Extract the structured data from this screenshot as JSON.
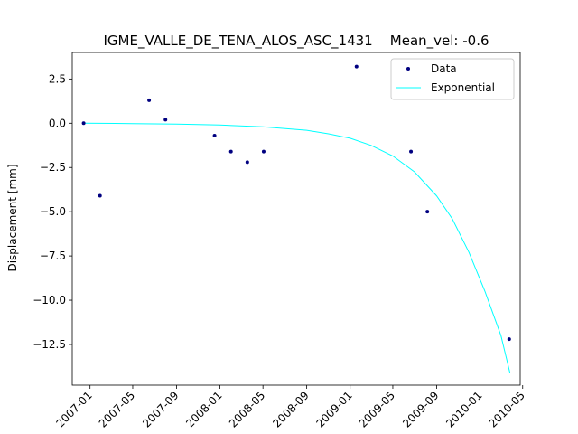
{
  "chart_data": {
    "type": "scatter",
    "title": "IGME_VALLE_DE_TENA_ALOS_ASC_1431    Mean_vel: -0.6",
    "xlabel": "",
    "ylabel": "Displacement [mm]",
    "xlim": [
      "2006-11-12",
      "2010-04-24"
    ],
    "ylim": [
      -14.8,
      4.0
    ],
    "x_ticks": [
      "2007-01",
      "2007-05",
      "2007-09",
      "2008-01",
      "2008-05",
      "2008-09",
      "2009-01",
      "2009-05",
      "2009-09",
      "2010-01",
      "2010-05"
    ],
    "y_ticks": [
      2.5,
      0.0,
      -2.5,
      -5.0,
      -7.5,
      -10.0,
      -12.5
    ],
    "y_tick_labels": [
      "2.5",
      "0.0",
      "−2.5",
      "−5.0",
      "−7.5",
      "−10.0",
      "−12.5"
    ],
    "grid": false,
    "legend_position": "top-right",
    "series": [
      {
        "name": "Data",
        "type": "scatter",
        "color": "#000080",
        "points": [
          {
            "x": "2006-12-14",
            "y": 0.0
          },
          {
            "x": "2007-01-29",
            "y": -4.1
          },
          {
            "x": "2007-06-16",
            "y": 1.3
          },
          {
            "x": "2007-08-01",
            "y": 0.2
          },
          {
            "x": "2007-12-17",
            "y": -0.7
          },
          {
            "x": "2008-02-01",
            "y": -1.6
          },
          {
            "x": "2008-03-18",
            "y": -2.2
          },
          {
            "x": "2008-05-03",
            "y": -1.6
          },
          {
            "x": "2009-01-19",
            "y": 3.2
          },
          {
            "x": "2009-06-21",
            "y": -1.6
          },
          {
            "x": "2009-08-06",
            "y": -5.0
          },
          {
            "x": "2010-03-24",
            "y": -12.2
          }
        ]
      },
      {
        "name": "Exponential",
        "type": "line",
        "color": "#00ffff",
        "points": [
          {
            "x": "2006-12-14",
            "y": 0.0
          },
          {
            "x": "2007-05-01",
            "y": -0.02
          },
          {
            "x": "2007-09-01",
            "y": -0.05
          },
          {
            "x": "2008-01-01",
            "y": -0.1
          },
          {
            "x": "2008-05-01",
            "y": -0.2
          },
          {
            "x": "2008-09-01",
            "y": -0.4
          },
          {
            "x": "2008-11-01",
            "y": -0.6
          },
          {
            "x": "2009-01-01",
            "y": -0.85
          },
          {
            "x": "2009-03-01",
            "y": -1.25
          },
          {
            "x": "2009-05-01",
            "y": -1.85
          },
          {
            "x": "2009-07-01",
            "y": -2.75
          },
          {
            "x": "2009-09-01",
            "y": -4.1
          },
          {
            "x": "2009-10-15",
            "y": -5.4
          },
          {
            "x": "2009-12-01",
            "y": -7.3
          },
          {
            "x": "2010-01-15",
            "y": -9.5
          },
          {
            "x": "2010-03-01",
            "y": -12.0
          },
          {
            "x": "2010-03-26",
            "y": -14.1
          }
        ]
      }
    ]
  }
}
